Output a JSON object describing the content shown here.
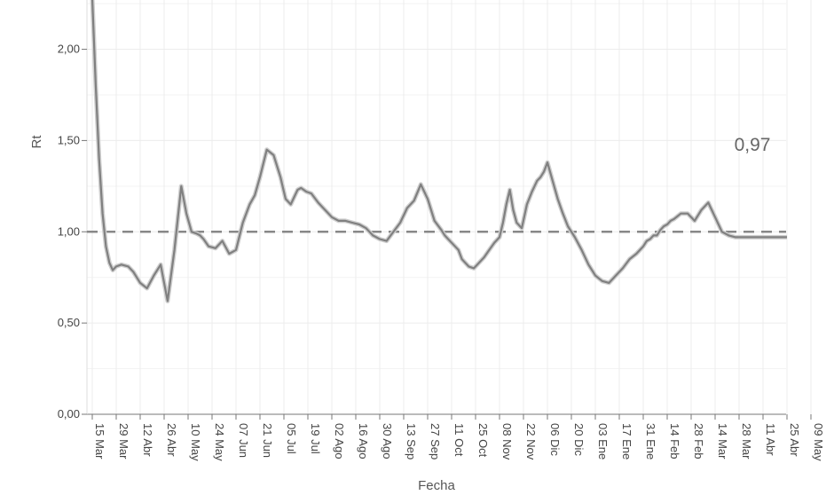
{
  "chart_data": {
    "type": "line",
    "xlabel": "Fecha",
    "ylabel": "Rt",
    "x_tick_labels": [
      "15 Mar",
      "29 Mar",
      "12 Abr",
      "26 Abr",
      "10 May",
      "24 May",
      "07 Jun",
      "21 Jun",
      "05 Jul",
      "19 Jul",
      "02 Ago",
      "16 Ago",
      "30 Ago",
      "13 Sep",
      "27 Sep",
      "11 Oct",
      "25 Oct",
      "08 Nov",
      "22 Nov",
      "06 Dic",
      "20 Dic",
      "03 Ene",
      "17 Ene",
      "31 Ene",
      "14 Feb",
      "28 Feb",
      "14 Mar",
      "28 Mar",
      "11 Abr",
      "25 Abr",
      "09 May"
    ],
    "y_ticks": [
      0,
      0.5,
      1.0,
      1.5,
      2.0
    ],
    "y_tick_labels": [
      "0,00",
      "0,50",
      "1,00",
      "1,50",
      "2,00"
    ],
    "ylim": [
      0,
      2.27
    ],
    "grid": true,
    "reference_line": {
      "y": 1.0,
      "style": "dashed"
    },
    "annotation": "0,97",
    "series": [
      {
        "color": "#808080",
        "x_days": [
          0,
          2,
          4,
          6,
          8,
          10,
          12,
          14,
          17,
          21,
          24,
          28,
          32,
          36,
          40,
          44,
          48,
          52,
          55,
          58,
          61,
          63,
          65,
          68,
          72,
          76,
          80,
          84,
          88,
          92,
          95,
          98,
          102,
          106,
          110,
          113,
          116,
          120,
          122,
          125,
          128,
          132,
          136,
          140,
          144,
          148,
          152,
          156,
          160,
          164,
          168,
          172,
          176,
          180,
          184,
          188,
          192,
          196,
          200,
          204,
          206,
          208,
          210,
          212,
          214,
          216,
          218,
          220,
          223,
          226,
          229,
          232,
          235,
          238,
          240,
          242,
          244,
          246,
          248,
          251,
          254,
          257,
          260,
          262,
          264,
          266,
          269,
          272,
          275,
          278,
          282,
          286,
          290,
          294,
          298,
          302,
          306,
          310,
          314,
          318,
          322,
          324,
          326,
          328,
          330,
          332,
          334,
          336,
          338,
          340,
          344,
          348,
          352,
          356,
          360,
          364,
          368,
          372,
          376,
          380,
          384,
          388,
          392,
          396,
          400,
          404,
          406
        ],
        "values": [
          2.28,
          1.8,
          1.4,
          1.1,
          0.92,
          0.83,
          0.79,
          0.81,
          0.82,
          0.81,
          0.78,
          0.72,
          0.69,
          0.76,
          0.82,
          0.62,
          0.9,
          1.25,
          1.1,
          1.0,
          0.99,
          0.98,
          0.96,
          0.92,
          0.91,
          0.95,
          0.88,
          0.9,
          1.05,
          1.15,
          1.2,
          1.3,
          1.45,
          1.42,
          1.3,
          1.18,
          1.15,
          1.23,
          1.24,
          1.22,
          1.21,
          1.16,
          1.12,
          1.08,
          1.06,
          1.06,
          1.05,
          1.04,
          1.02,
          0.98,
          0.96,
          0.95,
          1.0,
          1.05,
          1.13,
          1.17,
          1.26,
          1.18,
          1.06,
          1.01,
          0.98,
          0.96,
          0.94,
          0.92,
          0.9,
          0.85,
          0.83,
          0.81,
          0.8,
          0.83,
          0.86,
          0.9,
          0.94,
          0.97,
          1.05,
          1.15,
          1.23,
          1.12,
          1.05,
          1.02,
          1.15,
          1.22,
          1.28,
          1.3,
          1.33,
          1.38,
          1.28,
          1.18,
          1.1,
          1.03,
          0.97,
          0.9,
          0.82,
          0.76,
          0.73,
          0.72,
          0.76,
          0.8,
          0.85,
          0.88,
          0.92,
          0.95,
          0.96,
          0.98,
          0.98,
          1.01,
          1.03,
          1.04,
          1.06,
          1.07,
          1.1,
          1.1,
          1.06,
          1.12,
          1.16,
          1.08,
          1.0,
          0.98,
          0.97,
          0.97,
          0.97,
          0.97,
          0.97,
          0.97,
          0.97,
          0.97,
          0.97
        ],
        "note": "x_days offset from 15 Mar"
      }
    ]
  }
}
